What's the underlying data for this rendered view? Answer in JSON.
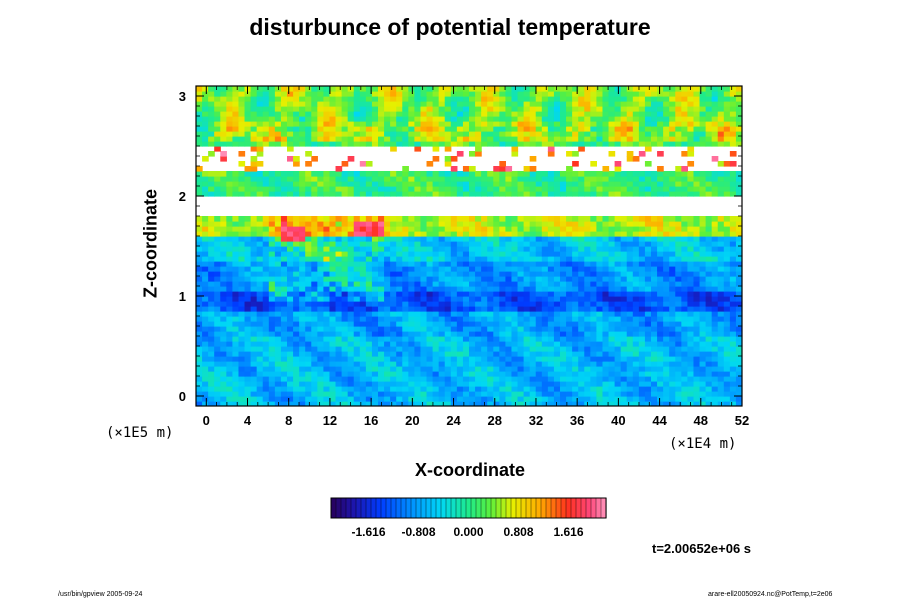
{
  "page": {
    "footer_left": "/usr/bin/gpview 2005-09-24",
    "footer_right": "arare-ell20050924.nc@PotTemp,t=2e06"
  },
  "chart_data": {
    "type": "heatmap",
    "title": "disturbunce of potential temperature",
    "xlabel": "X-coordinate",
    "ylabel": "Z-coordinate",
    "x_unit": "(×1E4 m)",
    "y_unit": "(×1E5 m)",
    "xlim": [
      -1,
      52
    ],
    "ylim": [
      -0.1,
      3.1
    ],
    "x_ticks": [
      0,
      4,
      8,
      12,
      16,
      20,
      24,
      28,
      32,
      36,
      40,
      44,
      48,
      52
    ],
    "y_ticks": [
      0,
      1,
      2,
      3
    ],
    "colorbar": {
      "ticks": [
        "-1.616",
        "-0.808",
        "0.000",
        "0.808",
        "1.616"
      ],
      "tick_values": [
        -1.616,
        -0.808,
        0.0,
        0.808,
        1.616
      ],
      "range": [
        -2.222,
        2.222
      ],
      "n_levels": 55
    },
    "annotation": "t=2.00652e+06 s",
    "colors": {
      "deep_negative": "#2a1a8c",
      "negative": "#0055ff",
      "slightly_negative": "#00bfff",
      "zero": "#22e08a",
      "positive": "#ffe000",
      "strong_positive": "#ff2020",
      "missing": "#ffffff"
    },
    "fields": [
      {
        "region": "lower layer z 0–0.6",
        "typical_value": -0.65
      },
      {
        "region": "cold band z ~0.9–1.0",
        "typical_value": -1.3
      },
      {
        "region": "layer z 1.1–1.6",
        "typical_value": -0.9
      },
      {
        "region": "warm layer z 1.6–1.8",
        "typical_value": 0.7
      },
      {
        "region": "undefined band z 1.8–2.0",
        "typical_value": null
      },
      {
        "region": "layered undefined z 2.2–2.5",
        "typical_value": null
      },
      {
        "region": "upper layer z 2.5–3.1",
        "typical_value": 0.2
      }
    ]
  }
}
